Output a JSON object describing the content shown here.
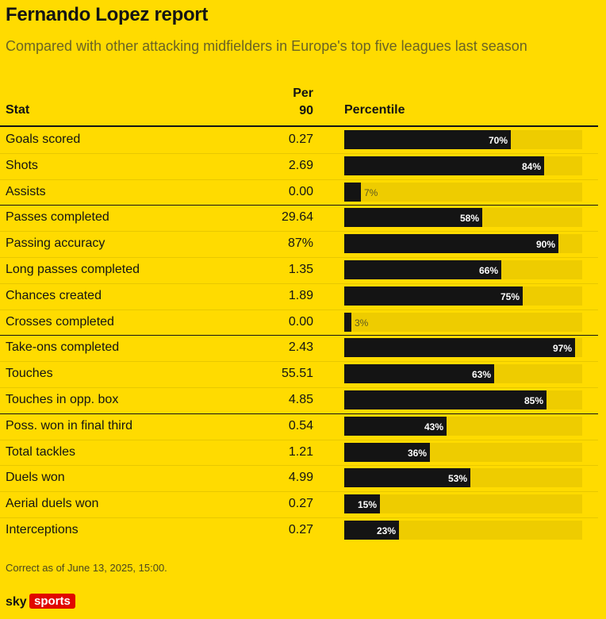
{
  "header": {
    "title": "Fernando Lopez report",
    "subtitle": "Compared with other attacking midfielders in Europe's top five leagues last season"
  },
  "table": {
    "col_stat": "Stat",
    "col_per90_line1": "Per",
    "col_per90_line2": "90",
    "col_percentile": "Percentile"
  },
  "chart_data": {
    "type": "bar",
    "orientation": "horizontal",
    "xlim": [
      0,
      100
    ],
    "groups_end_after": [
      2,
      7,
      10
    ],
    "rows": [
      {
        "stat": "Goals scored",
        "per90": "0.27",
        "percentile": 70
      },
      {
        "stat": "Shots",
        "per90": "2.69",
        "percentile": 84
      },
      {
        "stat": "Assists",
        "per90": "0.00",
        "percentile": 7
      },
      {
        "stat": "Passes completed",
        "per90": "29.64",
        "percentile": 58
      },
      {
        "stat": "Passing accuracy",
        "per90": "87%",
        "percentile": 90
      },
      {
        "stat": "Long passes completed",
        "per90": "1.35",
        "percentile": 66
      },
      {
        "stat": "Chances created",
        "per90": "1.89",
        "percentile": 75
      },
      {
        "stat": "Crosses completed",
        "per90": "0.00",
        "percentile": 3
      },
      {
        "stat": "Take-ons completed",
        "per90": "2.43",
        "percentile": 97
      },
      {
        "stat": "Touches",
        "per90": "55.51",
        "percentile": 63
      },
      {
        "stat": "Touches in opp. box",
        "per90": "4.85",
        "percentile": 85
      },
      {
        "stat": "Poss. won in final third",
        "per90": "0.54",
        "percentile": 43
      },
      {
        "stat": "Total tackles",
        "per90": "1.21",
        "percentile": 36
      },
      {
        "stat": "Duels won",
        "per90": "4.99",
        "percentile": 53
      },
      {
        "stat": "Aerial duels won",
        "per90": "0.27",
        "percentile": 15
      },
      {
        "stat": "Interceptions",
        "per90": "0.27",
        "percentile": 23
      }
    ]
  },
  "footer": {
    "note": "Correct as of June 13, 2025, 15:00.",
    "logo_sky": "sky",
    "logo_sports": "sports"
  },
  "colors": {
    "background": "#FFDB00",
    "bar": "#141414",
    "track": "#EECC00",
    "logo_red": "#E10600"
  }
}
